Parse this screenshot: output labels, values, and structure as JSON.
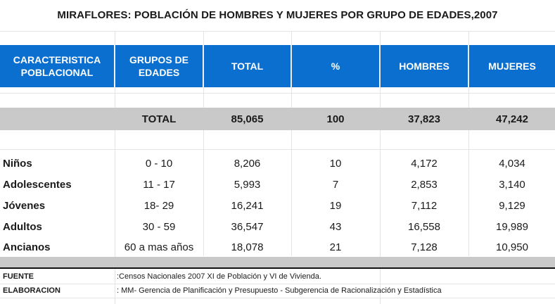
{
  "title": "MIRAFLORES:  POBLACIÓN DE HOMBRES Y MUJERES POR GRUPO DE EDADES,2007",
  "header": {
    "col1": "CARACTERISTICA POBLACIONAL",
    "col2": "GRUPOS DE EDADES",
    "col3": "TOTAL",
    "col4": "%",
    "col5": "HOMBRES",
    "col6": "MUJERES"
  },
  "total_row": {
    "label": "TOTAL",
    "total": "85,065",
    "pct": "100",
    "hombres": "37,823",
    "mujeres": "47,242"
  },
  "rows": [
    {
      "label": "Niños",
      "grupo": "0 - 10",
      "total": "8,206",
      "pct": "10",
      "hombres": "4,172",
      "mujeres": "4,034"
    },
    {
      "label": "Adolescentes",
      "grupo": "11 - 17",
      "total": "5,993",
      "pct": "7",
      "hombres": "2,853",
      "mujeres": "3,140"
    },
    {
      "label": "Jóvenes",
      "grupo": "18- 29",
      "total": "16,241",
      "pct": "19",
      "hombres": "7,112",
      "mujeres": "9,129"
    },
    {
      "label": "Adultos",
      "grupo": "30 - 59",
      "total": "36,547",
      "pct": "43",
      "hombres": "16,558",
      "mujeres": "19,989"
    },
    {
      "label": "Ancianos",
      "grupo": "60 a mas años",
      "total": "18,078",
      "pct": "21",
      "hombres": "7,128",
      "mujeres": "10,950"
    }
  ],
  "footer": {
    "fuente_label": "FUENTE",
    "fuente_value": ":Censos Nacionales 2007 XI de Población y VI de Vivienda.",
    "elab_label": "ELABORACION",
    "elab_value": ": MM- Gerencia de Planificación y Presupuesto - Subgerencia de Racionalización y Estadística"
  },
  "colors": {
    "header_blue": "#0b6fd0",
    "total_gray": "#c9c9c9"
  }
}
